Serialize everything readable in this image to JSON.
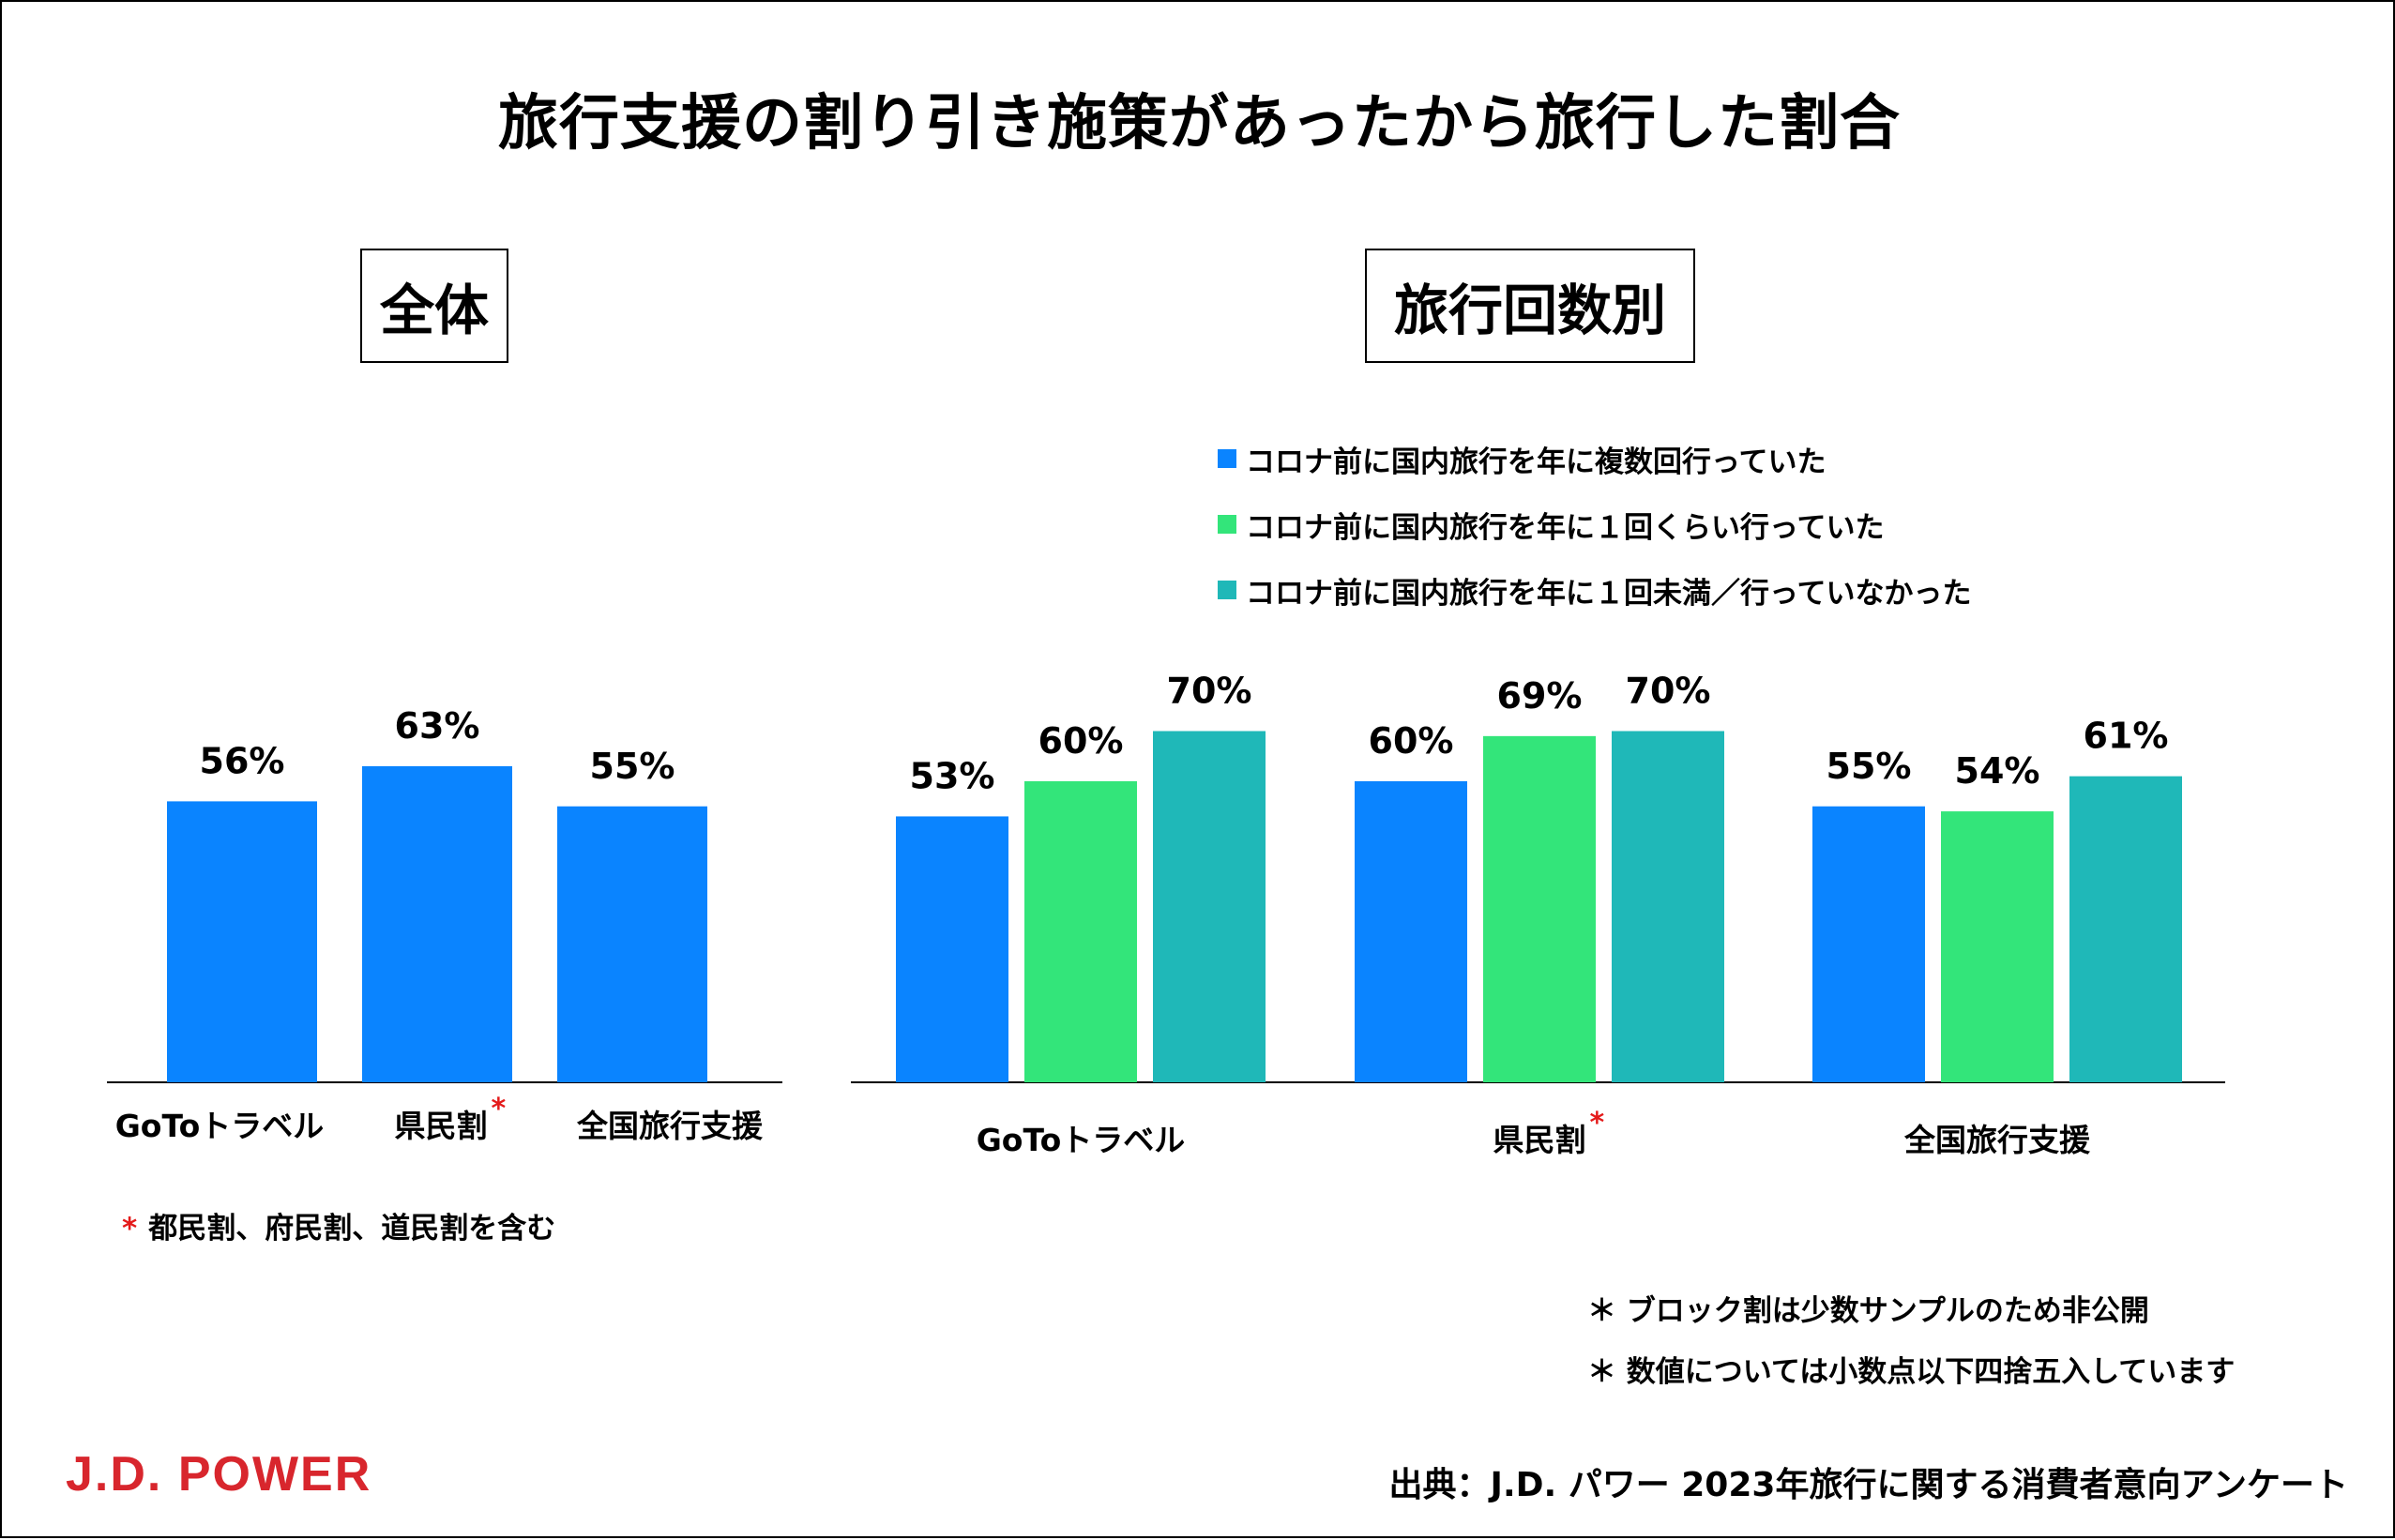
{
  "title": "旅行支援の割り引き施策があったから旅行した割合",
  "sections": {
    "overall": "全体",
    "by_frequency": "旅行回数別"
  },
  "colors": {
    "blue": "#0a84ff",
    "green": "#33e57a",
    "teal": "#1fb8b8",
    "asterisk": "#e41a1a",
    "logo": "#d8262d"
  },
  "legend": [
    {
      "label": "コロナ前に国内旅行を年に複数回行っていた",
      "color": "#0a84ff"
    },
    {
      "label": "コロナ前に国内旅行を年に１回くらい行っていた",
      "color": "#33e57a"
    },
    {
      "label": "コロナ前に国内旅行を年に１回未満／行っていなかった",
      "color": "#1fb8b8"
    }
  ],
  "chart_data": [
    {
      "type": "bar",
      "title": "全体",
      "categories": [
        "GoToトラベル",
        "県民割",
        "全国旅行支援"
      ],
      "asterisk_category": "県民割",
      "values": [
        56,
        63,
        55
      ],
      "value_labels": [
        "56%",
        "63%",
        "55%"
      ],
      "ylim": [
        0,
        100
      ],
      "grid": false
    },
    {
      "type": "bar",
      "title": "旅行回数別",
      "categories": [
        "GoToトラベル",
        "県民割",
        "全国旅行支援"
      ],
      "asterisk_category": "県民割",
      "series": [
        {
          "name": "コロナ前に国内旅行を年に複数回行っていた",
          "values": [
            53,
            60,
            55
          ],
          "value_labels": [
            "53%",
            "60%",
            "55%"
          ]
        },
        {
          "name": "コロナ前に国内旅行を年に１回くらい行っていた",
          "values": [
            60,
            69,
            54
          ],
          "value_labels": [
            "60%",
            "69%",
            "54%"
          ]
        },
        {
          "name": "コロナ前に国内旅行を年に１回未満／行っていなかった",
          "values": [
            70,
            70,
            61
          ],
          "value_labels": [
            "70%",
            "70%",
            "61%"
          ]
        }
      ],
      "ylim": [
        0,
        100
      ],
      "grid": false,
      "legend_position": "top"
    }
  ],
  "notes": {
    "asterisk_mark": "*",
    "prefecture": "都民割、府民割、道民割を含む",
    "block": "＊ ブロック割は少数サンプルのため非公開",
    "rounding": "＊ 数値については小数点以下四捨五入しています"
  },
  "logo": "J.D. POWER",
  "source": "出典：J.D. パワー 2023年旅行に関する消費者意向アンケート"
}
